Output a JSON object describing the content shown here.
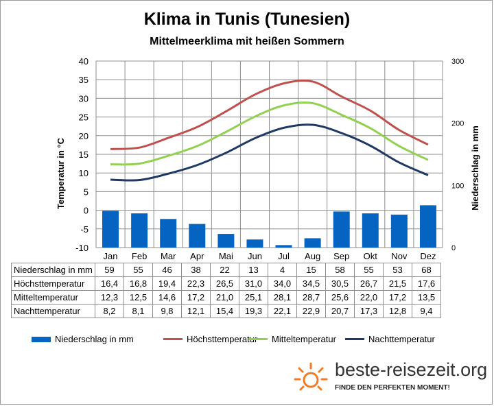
{
  "title": "Klima in Tunis (Tunesien)",
  "subtitle": "Mittelmeerklima mit heißen Sommern",
  "chart_data": {
    "type": "bar+line",
    "categories": [
      "Jan",
      "Feb",
      "Mar",
      "Apr",
      "Mai",
      "Jun",
      "Jul",
      "Aug",
      "Sep",
      "Okt",
      "Nov",
      "Dez"
    ],
    "y_left": {
      "label": "Temperatur in °C",
      "range": [
        -10,
        40
      ],
      "ticks": [
        "40",
        "35",
        "30",
        "25",
        "20",
        "15",
        "10",
        "5",
        "0",
        "-5",
        "-10"
      ]
    },
    "y_right": {
      "label": "Niederschlag in mm",
      "range": [
        0,
        300
      ],
      "ticks": [
        "300",
        "200",
        "100",
        "0"
      ]
    },
    "grid": true,
    "legend_position": "bottom",
    "series": [
      {
        "name": "Niederschlag in mm",
        "type": "bar",
        "axis": "right",
        "color": "#0563c1",
        "values": [
          59,
          55,
          46,
          38,
          22,
          13,
          4,
          15,
          58,
          55,
          53,
          68
        ],
        "labels": [
          "59",
          "55",
          "46",
          "38",
          "22",
          "13",
          "4",
          "15",
          "58",
          "55",
          "53",
          "68"
        ]
      },
      {
        "name": "Höchsttemperatur",
        "type": "line",
        "axis": "left",
        "color": "#c0504d",
        "values": [
          16.4,
          16.8,
          19.4,
          22.3,
          26.5,
          31.0,
          34.0,
          34.5,
          30.5,
          26.7,
          21.5,
          17.6
        ],
        "labels": [
          "16,4",
          "16,8",
          "19,4",
          "22,3",
          "26,5",
          "31,0",
          "34,0",
          "34,5",
          "30,5",
          "26,7",
          "21,5",
          "17,6"
        ]
      },
      {
        "name": "Mitteltemperatur",
        "type": "line",
        "axis": "left",
        "color": "#92d050",
        "values": [
          12.3,
          12.5,
          14.6,
          17.2,
          21.0,
          25.1,
          28.1,
          28.7,
          25.6,
          22.0,
          17.2,
          13.5
        ],
        "labels": [
          "12,3",
          "12,5",
          "14,6",
          "17,2",
          "21,0",
          "25,1",
          "28,1",
          "28,7",
          "25,6",
          "22,0",
          "17,2",
          "13,5"
        ]
      },
      {
        "name": "Nachttemperatur",
        "type": "line",
        "axis": "left",
        "color": "#1f3864",
        "values": [
          8.2,
          8.1,
          9.8,
          12.1,
          15.4,
          19.3,
          22.1,
          22.9,
          20.7,
          17.3,
          12.8,
          9.4
        ],
        "labels": [
          "8,2",
          "8,1",
          "9,8",
          "12,1",
          "15,4",
          "19,3",
          "22,1",
          "22,9",
          "20,7",
          "17,3",
          "12,8",
          "9,4"
        ]
      }
    ]
  },
  "brand": {
    "name": "beste-reisezeit.org",
    "slogan": "FINDE DEN PERFEKTEN MOMENT!",
    "logo_icon": "sun-icon",
    "accent": "#f07b24"
  }
}
